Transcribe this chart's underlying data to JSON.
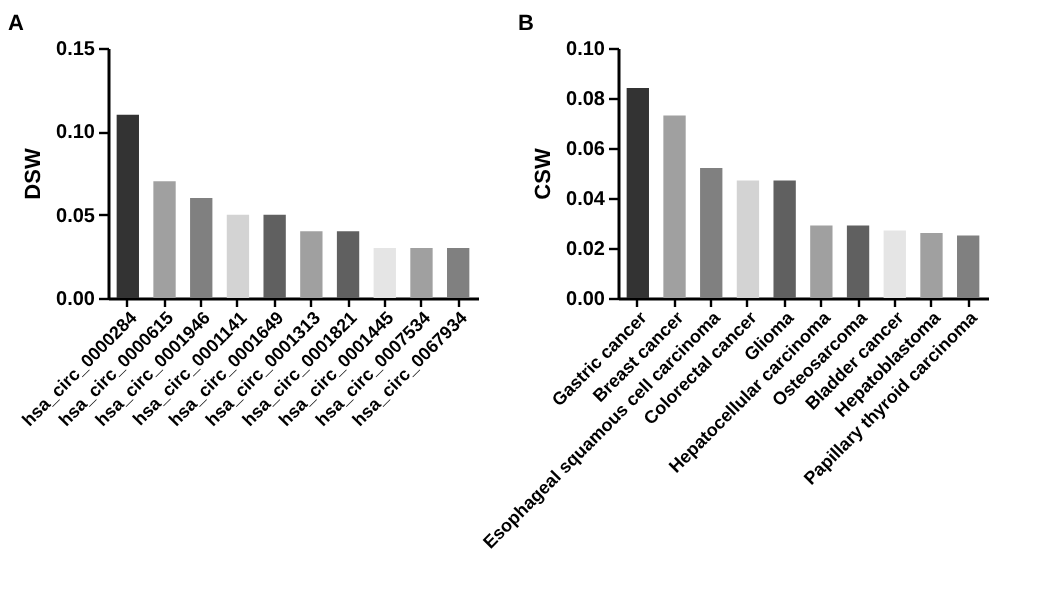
{
  "chart_data": [
    {
      "type": "bar",
      "title": "A",
      "ylabel": "DSW",
      "categories": [
        "hsa_circ_0000284",
        "hsa_circ_0000615",
        "hsa_circ_0001946",
        "hsa_circ_0001141",
        "hsa_circ_0001649",
        "hsa_circ_0001313",
        "hsa_circ_0001821",
        "hsa_circ_0001445",
        "hsa_circ_0007534",
        "hsa_circ_0067934"
      ],
      "values": [
        0.11,
        0.07,
        0.06,
        0.05,
        0.05,
        0.04,
        0.04,
        0.03,
        0.03,
        0.03
      ],
      "colors": [
        "#333333",
        "#a0a0a0",
        "#808080",
        "#d3d3d3",
        "#606060",
        "#a0a0a0",
        "#606060",
        "#e5e5e5",
        "#a0a0a0",
        "#808080"
      ],
      "ylim": [
        0,
        0.15
      ],
      "yticks": [
        {
          "value": 0,
          "label": "0.00"
        },
        {
          "value": 0.05,
          "label": "0.05"
        },
        {
          "value": 0.1,
          "label": "0.10"
        },
        {
          "value": 0.15,
          "label": "0.15"
        }
      ],
      "grid": false,
      "legend": false
    },
    {
      "type": "bar",
      "title": "B",
      "ylabel": "CSW",
      "categories": [
        "Gastric cancer",
        "Breast cancer",
        "Esophageal squamous cell carcinoma",
        "Colorectal cancer",
        "Glioma",
        "Hepatocellular carcinoma",
        "Osteosarcoma",
        "Bladder cancer",
        "Hepatoblastoma",
        "Papillary thyroid carcinoma"
      ],
      "values": [
        0.084,
        0.073,
        0.052,
        0.047,
        0.047,
        0.029,
        0.029,
        0.027,
        0.026,
        0.025
      ],
      "colors": [
        "#333333",
        "#a0a0a0",
        "#808080",
        "#d3d3d3",
        "#606060",
        "#a0a0a0",
        "#606060",
        "#e5e5e5",
        "#a0a0a0",
        "#808080"
      ],
      "ylim": [
        0,
        0.1
      ],
      "yticks": [
        {
          "value": 0,
          "label": "0.00"
        },
        {
          "value": 0.02,
          "label": "0.02"
        },
        {
          "value": 0.04,
          "label": "0.04"
        },
        {
          "value": 0.06,
          "label": "0.06"
        },
        {
          "value": 0.08,
          "label": "0.08"
        },
        {
          "value": 0.1,
          "label": "0.10"
        }
      ],
      "grid": false,
      "legend": false
    }
  ]
}
